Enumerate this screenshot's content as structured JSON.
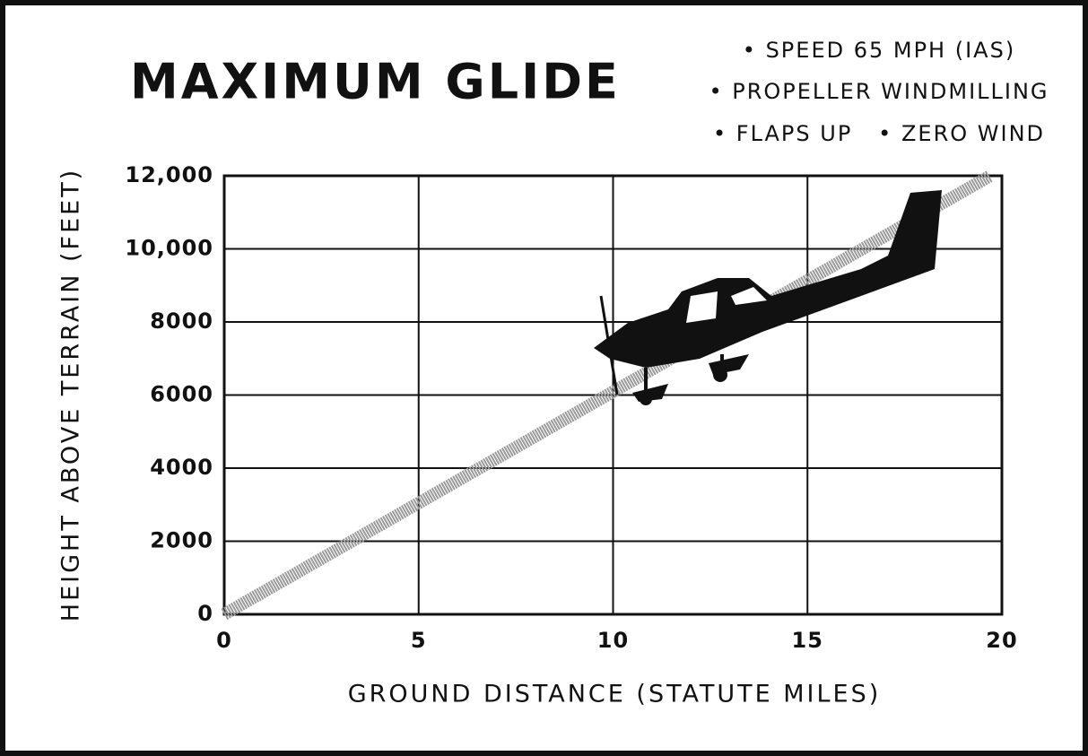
{
  "chart_data": {
    "type": "line",
    "title": "MAXIMUM GLIDE",
    "notes": [
      "• SPEED 65 MPH (IAS)",
      "• PROPELLER WINDMILLING",
      "• FLAPS UP   • ZERO WIND"
    ],
    "x_label": "GROUND DISTANCE (STATUTE MILES)",
    "y_label": "HEIGHT ABOVE TERRAIN (FEET)",
    "x": [
      0,
      19.7
    ],
    "values": [
      0,
      12000
    ],
    "color": "#9a9a9a",
    "xlim": [
      0,
      20
    ],
    "xticks": [
      0,
      5,
      10,
      15,
      20
    ],
    "ylim": [
      0,
      12000
    ],
    "yticks": [
      0,
      2000,
      4000,
      6000,
      8000,
      {
        "value": 10000,
        "label": "10,000"
      },
      {
        "value": 12000,
        "label": "12,000"
      }
    ],
    "grid": true
  }
}
